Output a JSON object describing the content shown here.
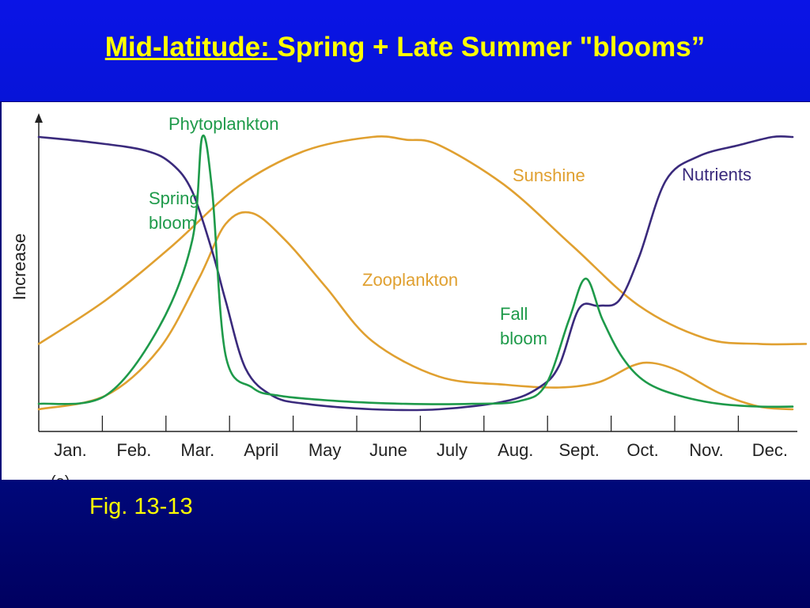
{
  "slide": {
    "title_underlined": "Mid-latitude: ",
    "title_rest": "Spring + Late Summer \"blooms”",
    "caption": "Fig. 13-13",
    "partial_label": "(a)"
  },
  "colors": {
    "phytoplankton": "#1e9a4a",
    "nutrients": "#3a2a7c",
    "sunshine": "#e0a030",
    "zooplankton": "#e0a030",
    "title_text": "#ffff00"
  },
  "chart_data": {
    "type": "line",
    "title": "",
    "xlabel": "",
    "ylabel": "Increase",
    "categories": [
      "Jan.",
      "Feb.",
      "Mar.",
      "April",
      "May",
      "June",
      "July",
      "Aug.",
      "Sept.",
      "Oct.",
      "Nov.",
      "Dec."
    ],
    "ylim": [
      0,
      100
    ],
    "grid": false,
    "series": [
      {
        "name": "Phytoplankton",
        "x": [
          0,
          1,
          1.8,
          2.3,
          2.45,
          2.6,
          2.8,
          3.2,
          3.6,
          4.5,
          5.5,
          6.5,
          7.2,
          7.6,
          7.95,
          8.2,
          8.45,
          8.75,
          9.1,
          9.6,
          10.2,
          10.8,
          11.3
        ],
        "values": [
          2,
          5,
          30,
          62,
          100,
          80,
          20,
          8,
          5,
          3,
          2,
          2,
          3,
          9,
          33,
          48,
          33,
          19,
          10,
          5,
          2,
          1,
          1
        ]
      },
      {
        "name": "Nutrients",
        "x": [
          0,
          0.8,
          1.6,
          2.0,
          2.3,
          2.6,
          2.8,
          3.1,
          3.5,
          4.0,
          5.0,
          6.0,
          7.0,
          7.5,
          7.8,
          8.1,
          8.4,
          8.7,
          9.0,
          9.4,
          9.9,
          10.5,
          11.0,
          11.3
        ],
        "values": [
          100,
          98,
          95,
          90,
          80,
          58,
          40,
          15,
          5,
          2,
          0,
          0,
          3,
          8,
          16,
          37,
          38,
          40,
          56,
          84,
          93,
          97,
          100,
          100
        ]
      },
      {
        "name": "Sunshine",
        "x": [
          0,
          1,
          2,
          3,
          4,
          5,
          5.5,
          6,
          7,
          8,
          9,
          10,
          10.8,
          11.5
        ],
        "values": [
          24,
          40,
          60,
          82,
          95,
          100,
          99,
          97,
          82,
          60,
          38,
          26,
          24,
          24
        ]
      },
      {
        "name": "Zooplankton",
        "x": [
          0,
          1,
          1.8,
          2.4,
          2.8,
          3.2,
          3.7,
          4.3,
          5.0,
          6.0,
          7.0,
          7.8,
          8.4,
          8.9,
          9.2,
          9.6,
          10.2,
          10.8,
          11.3
        ],
        "values": [
          0,
          5,
          22,
          48,
          68,
          72,
          62,
          45,
          25,
          12,
          9,
          8,
          10,
          16,
          17,
          14,
          6,
          1,
          0
        ]
      }
    ],
    "annotations": [
      {
        "text": "Spring",
        "series": "Phytoplankton"
      },
      {
        "text": "bloom",
        "series": "Phytoplankton"
      },
      {
        "text": "Fall",
        "series": "Phytoplankton"
      },
      {
        "text": "bloom",
        "series": "Phytoplankton"
      }
    ]
  }
}
